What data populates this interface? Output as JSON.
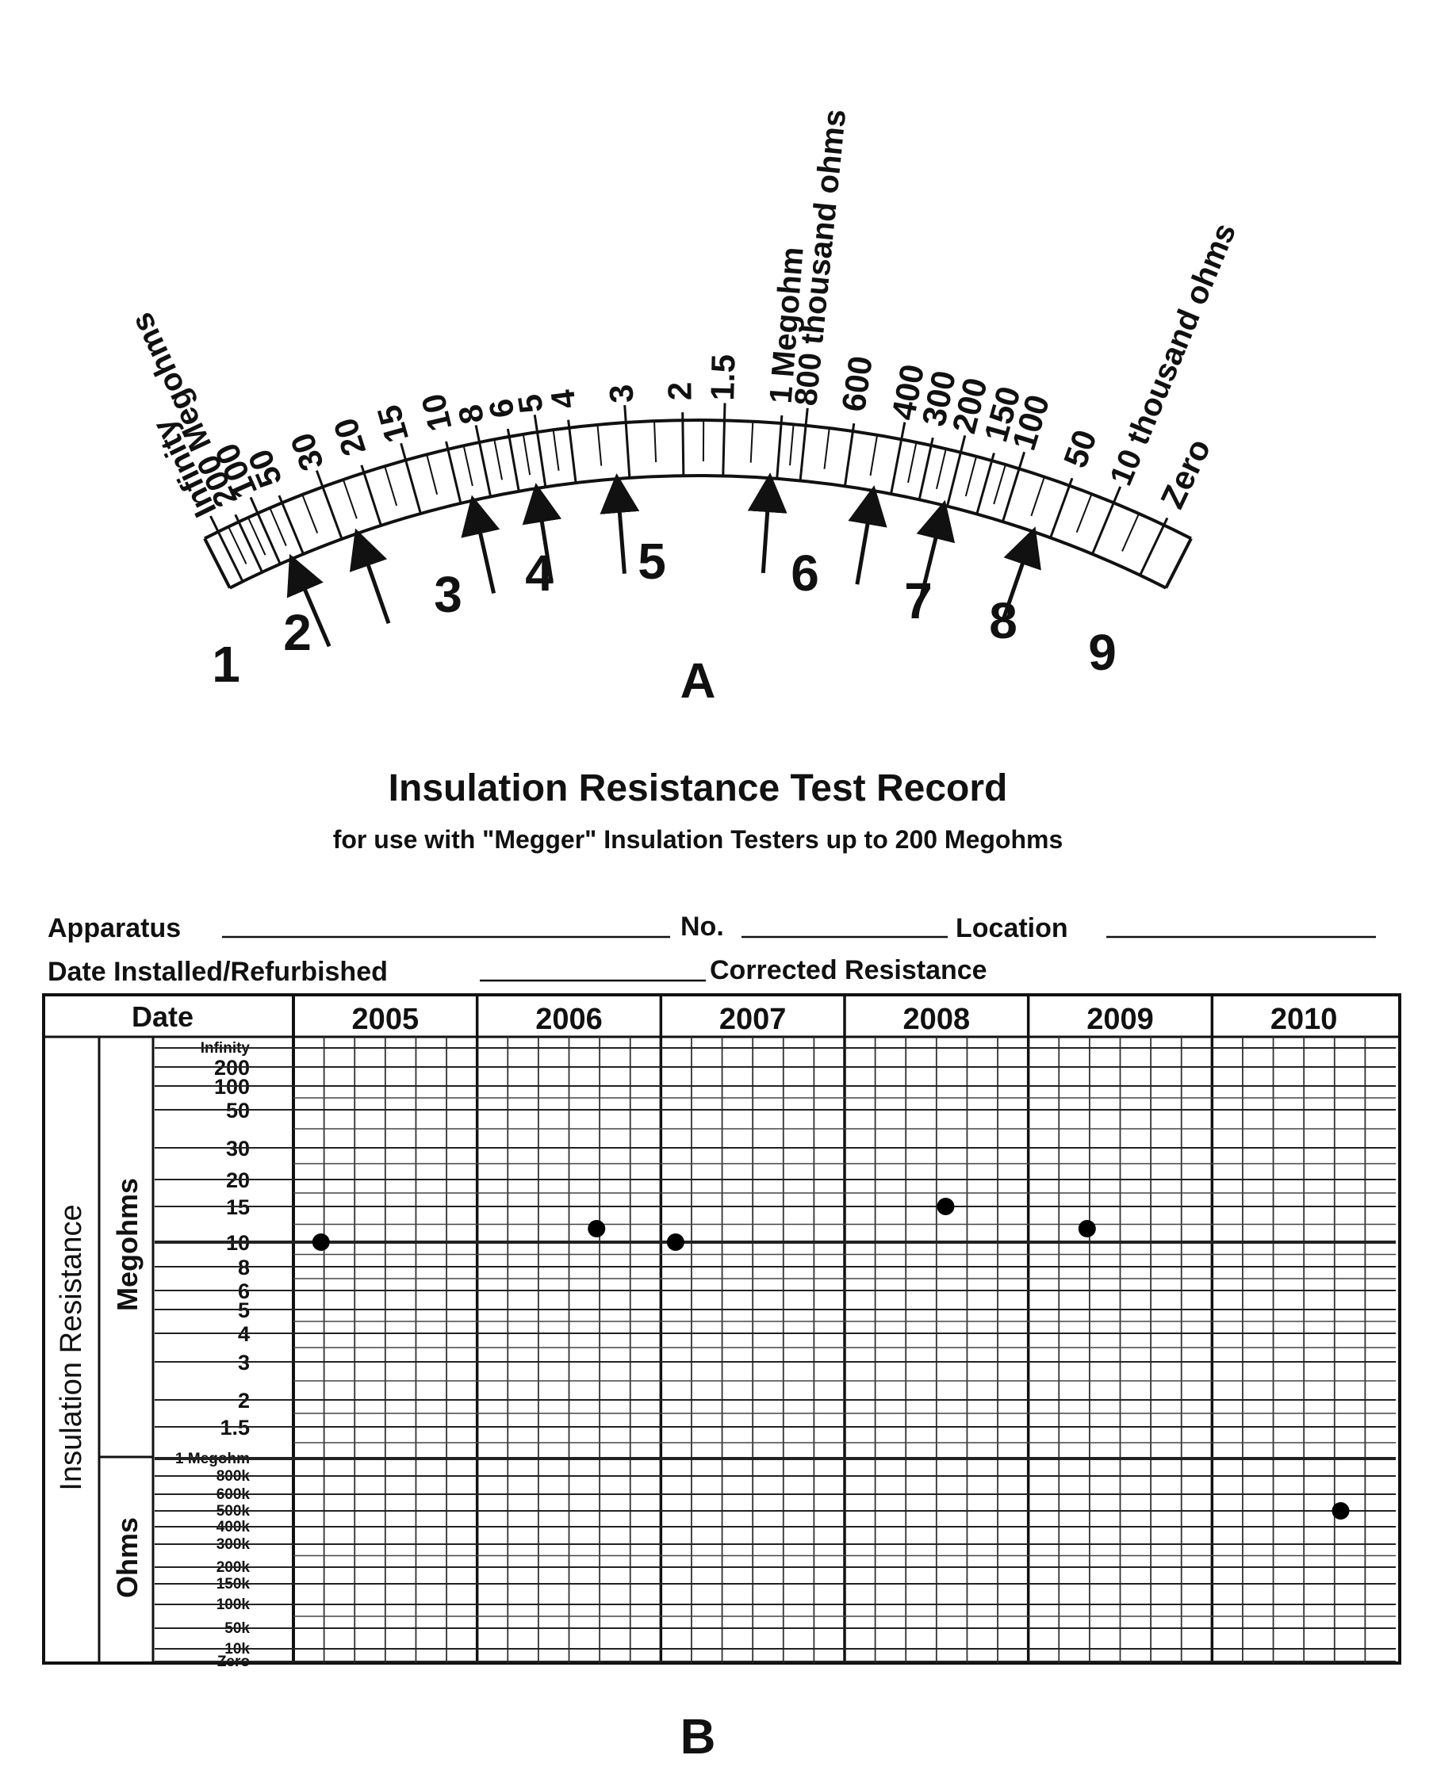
{
  "panel_a": {
    "label": "A",
    "scale_top_labels": [
      "Infinity",
      "200 Megohms",
      "100",
      "50",
      "30",
      "20",
      "15",
      "10",
      "8",
      "6",
      "5",
      "4",
      "3",
      "2",
      "1.5",
      "1 Megohm",
      "800 thousand ohms",
      "600",
      "400",
      "300",
      "200",
      "150",
      "100",
      "50",
      "10 thousand ohms",
      "Zero"
    ],
    "arrows": [
      "1",
      "2",
      "3",
      "4",
      "5",
      "6",
      "7",
      "8",
      "9"
    ]
  },
  "panel_b": {
    "label": "B",
    "title": "Insulation Resistance Test Record",
    "subtitle": "for use with \"Megger\" Insulation Testers up to 200 Megohms",
    "form": {
      "apparatus": "Apparatus",
      "no": "No.",
      "location": "Location",
      "date_installed": "Date Installed/Refurbished",
      "corrected": "Corrected Resistance"
    },
    "table": {
      "date_header": "Date",
      "years": [
        "2005",
        "2006",
        "2007",
        "2008",
        "2009",
        "2010"
      ],
      "side_label": "Insulation Resistance",
      "megohms_label": "Megohms",
      "ohms_label": "Ohms",
      "y_labels": [
        "Infinity",
        "200",
        "100",
        "50",
        "30",
        "20",
        "15",
        "10",
        "8",
        "6",
        "5",
        "4",
        "3",
        "2",
        "1.5",
        "1 Megohm",
        "800k",
        "600k",
        "500k",
        "400k",
        "300k",
        "200k",
        "150k",
        "100k",
        "50k",
        "10k",
        "Zero"
      ]
    }
  },
  "chart_data": {
    "type": "scatter",
    "x": [
      "2005",
      "2006",
      "2007",
      "2008",
      "2009",
      "2010"
    ],
    "y": [
      "10 Megohms",
      "12 Megohms",
      "10 Megohms",
      "15 Megohms",
      "12 Megohms",
      "500k"
    ]
  }
}
